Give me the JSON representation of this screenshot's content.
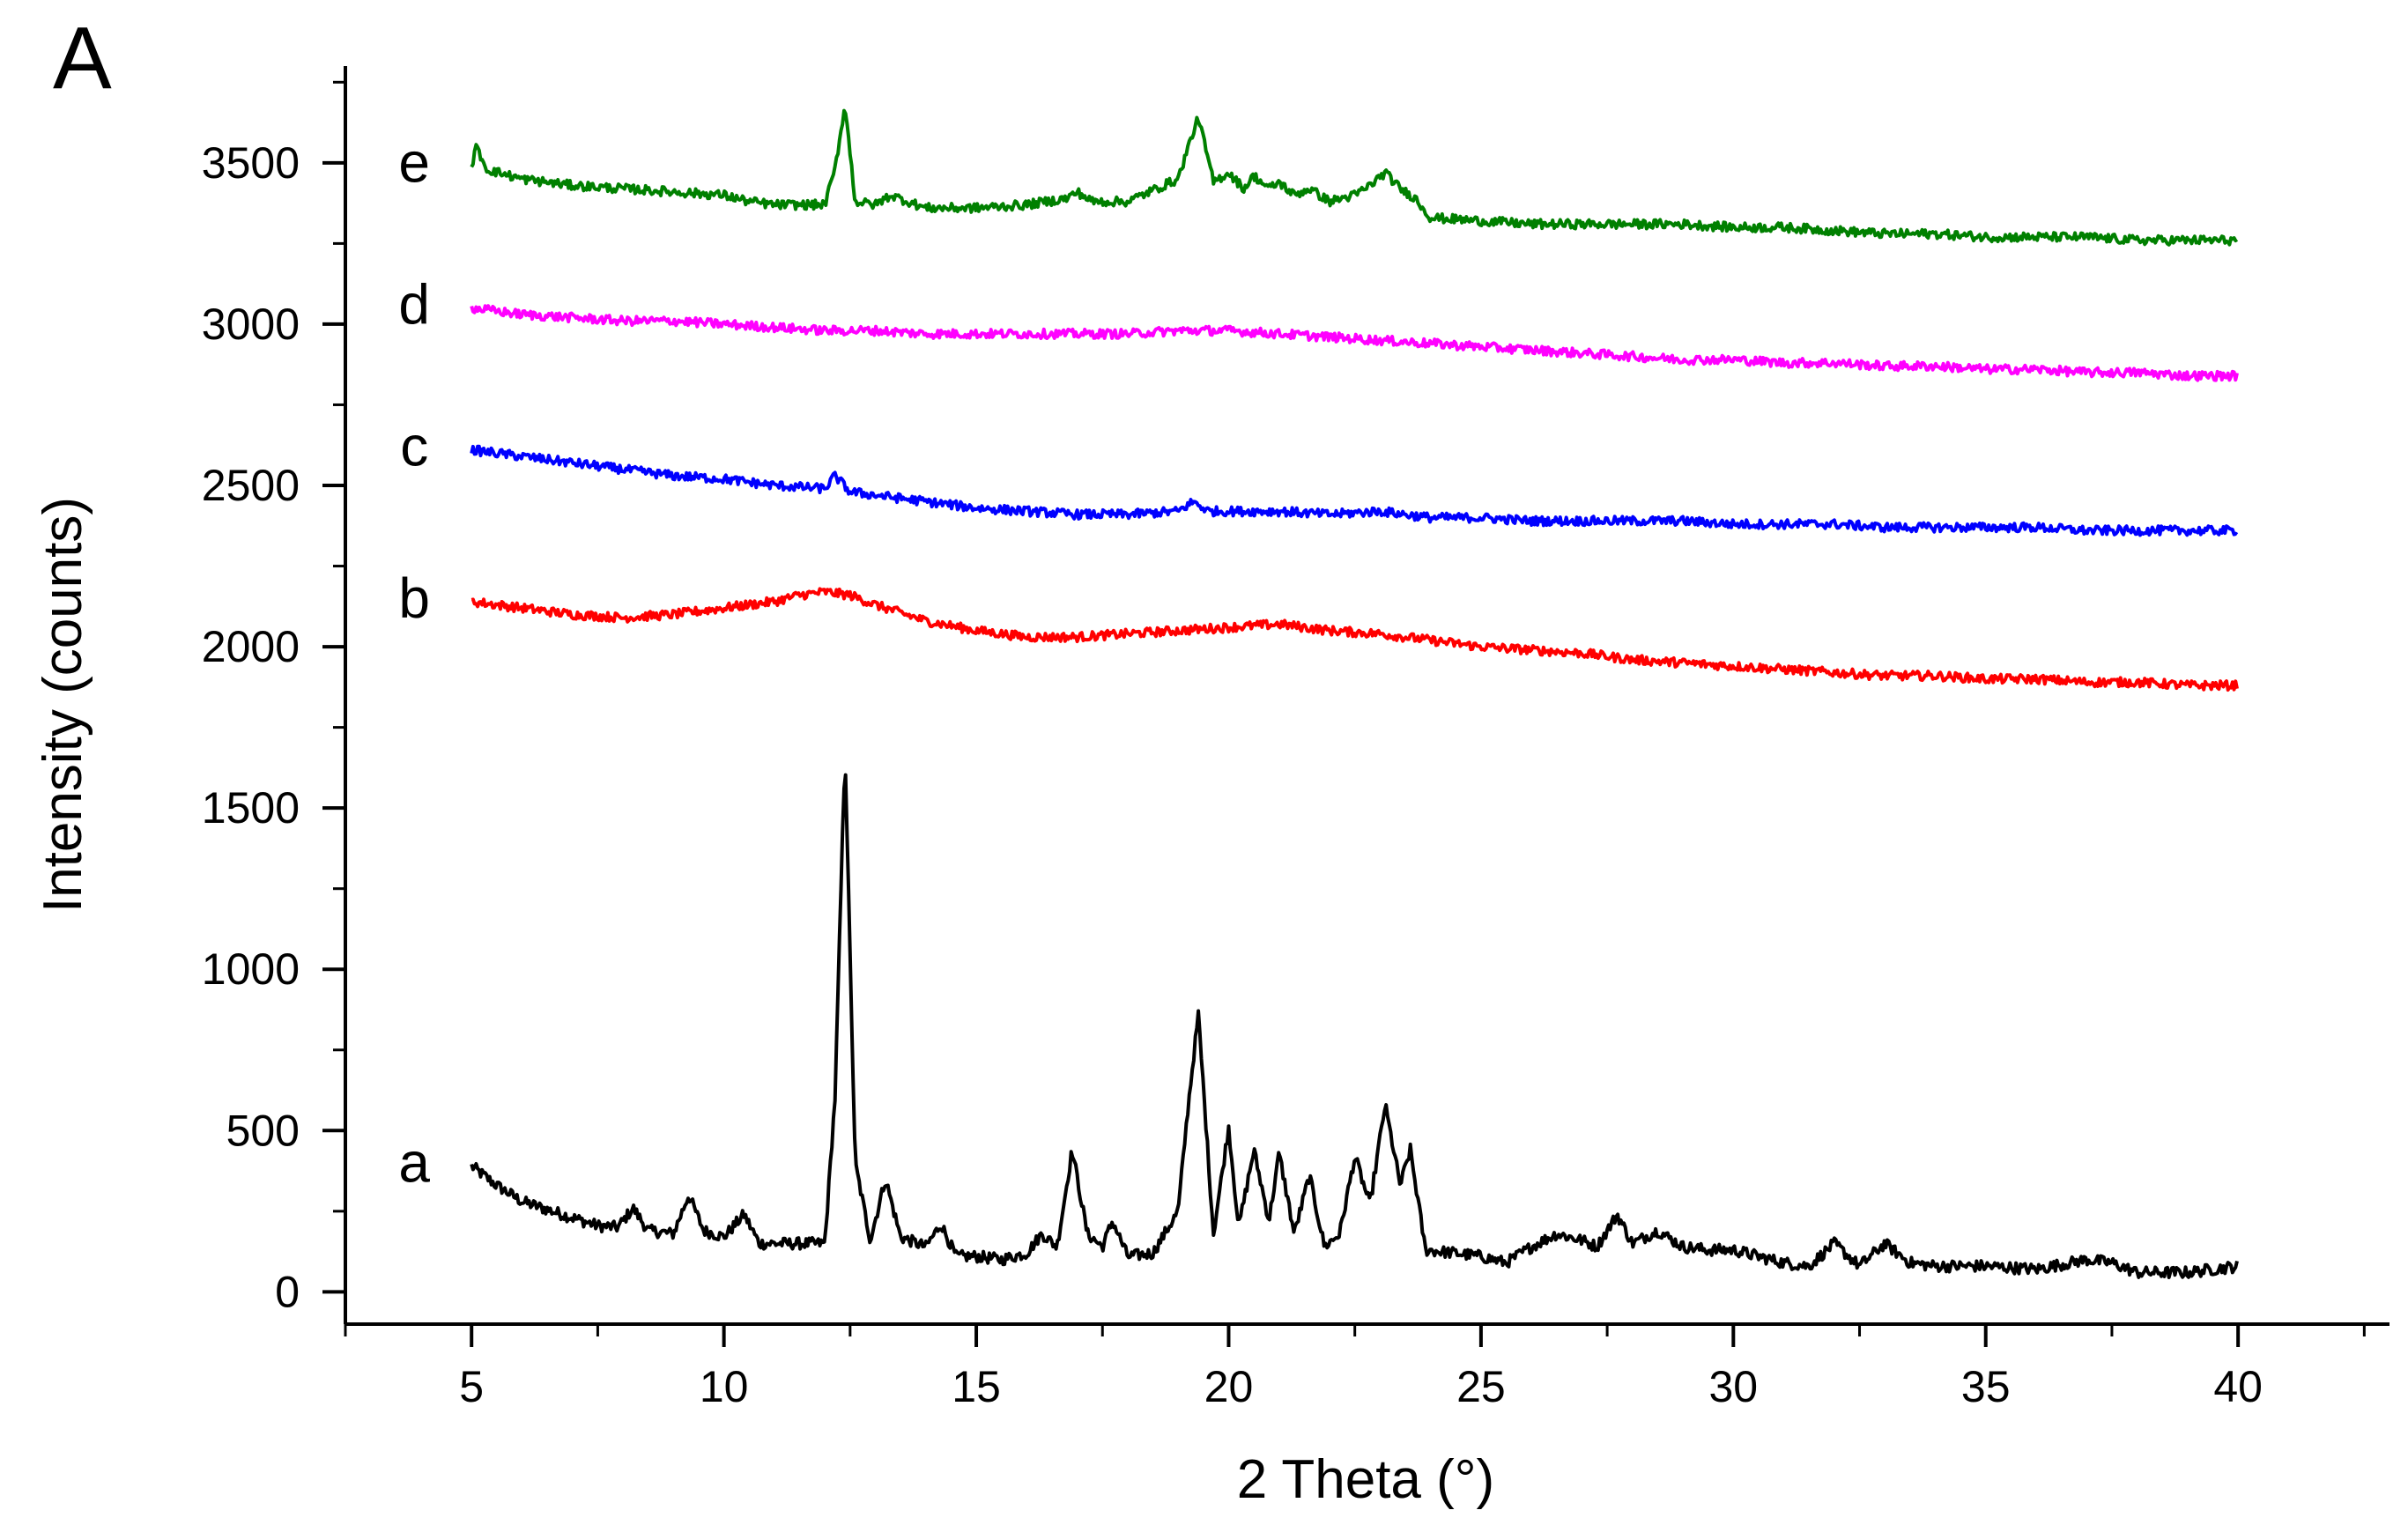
{
  "panel_label": "A",
  "chart_data": {
    "type": "line",
    "title": "",
    "xlabel": "2 Theta (°)",
    "ylabel": "Intensity (counts)",
    "xlim": [
      2.5,
      43
    ],
    "ylim": [
      -100,
      3800
    ],
    "xticks": [
      5,
      10,
      15,
      20,
      25,
      30,
      35,
      40
    ],
    "yticks": [
      0,
      500,
      1000,
      1500,
      2000,
      2500,
      3000,
      3500
    ],
    "grid": false,
    "legend": "none",
    "series": [
      {
        "label": "a",
        "color": "#000000",
        "x": [
          5,
          5.5,
          6,
          6.5,
          7,
          7.5,
          7.9,
          8.2,
          8.5,
          9,
          9.3,
          9.6,
          10,
          10.4,
          10.7,
          11,
          11.5,
          12,
          12.2,
          12.4,
          12.6,
          12.9,
          13.2,
          13.5,
          14,
          14.3,
          14.6,
          15,
          15.5,
          16,
          16.3,
          16.6,
          16.9,
          17.2,
          17.5,
          17.7,
          18,
          18.5,
          19,
          19.2,
          19.4,
          19.7,
          20,
          20.2,
          20.5,
          20.8,
          21,
          21.3,
          21.6,
          21.9,
          22.2,
          22.5,
          22.8,
          23.1,
          23.4,
          23.6,
          23.9,
          24.5,
          25,
          25.5,
          26,
          26.5,
          27,
          27.3,
          27.7,
          28,
          28.5,
          29,
          29.5,
          30,
          30.5,
          31,
          31.5,
          32,
          32.5,
          33,
          33.5,
          34,
          35,
          36,
          37,
          37.5,
          38,
          39,
          40
        ],
        "y": [
          390,
          330,
          280,
          255,
          230,
          205,
          200,
          260,
          190,
          180,
          300,
          190,
          170,
          240,
          150,
          150,
          150,
          150,
          600,
          1680,
          400,
          160,
          350,
          170,
          140,
          210,
          110,
          110,
          100,
          120,
          180,
          140,
          440,
          180,
          140,
          220,
          110,
          120,
          250,
          580,
          860,
          180,
          510,
          200,
          440,
          220,
          430,
          180,
          360,
          140,
          180,
          420,
          270,
          580,
          330,
          440,
          130,
          120,
          110,
          90,
          140,
          180,
          160,
          140,
          240,
          150,
          190,
          140,
          130,
          130,
          110,
          90,
          80,
          150,
          80,
          150,
          90,
          80,
          80,
          70,
          100,
          90,
          60,
          60,
          80
        ]
      },
      {
        "label": "b",
        "color": "#ff0000",
        "x": [
          5,
          6,
          7,
          8,
          9,
          10,
          11,
          11.5,
          12,
          12.5,
          13,
          14,
          15,
          16,
          17,
          18,
          19,
          20,
          21,
          22,
          23,
          24,
          25,
          26,
          27,
          28,
          29,
          30,
          31,
          32,
          33,
          34,
          35,
          36,
          37,
          38,
          39,
          40
        ],
        "y": [
          2140,
          2120,
          2100,
          2090,
          2100,
          2120,
          2140,
          2160,
          2170,
          2160,
          2130,
          2080,
          2050,
          2030,
          2030,
          2040,
          2050,
          2060,
          2070,
          2050,
          2040,
          2020,
          2000,
          1990,
          1980,
          1960,
          1950,
          1940,
          1930,
          1920,
          1910,
          1910,
          1900,
          1900,
          1890,
          1890,
          1880,
          1880
        ]
      },
      {
        "label": "c",
        "color": "#0000ff",
        "x": [
          5,
          6,
          7,
          8,
          9,
          10,
          11,
          12,
          12.2,
          12.5,
          13,
          14,
          15,
          16,
          17,
          18,
          19,
          19.3,
          19.6,
          20,
          21,
          22,
          23,
          24,
          25,
          26,
          27,
          28,
          29,
          30,
          31,
          32,
          33,
          34,
          35,
          36,
          37,
          38,
          39,
          40
        ],
        "y": [
          2610,
          2590,
          2570,
          2550,
          2530,
          2520,
          2500,
          2490,
          2530,
          2480,
          2470,
          2450,
          2430,
          2420,
          2410,
          2410,
          2420,
          2450,
          2420,
          2420,
          2420,
          2410,
          2420,
          2400,
          2400,
          2390,
          2390,
          2390,
          2390,
          2380,
          2380,
          2380,
          2370,
          2370,
          2370,
          2370,
          2360,
          2360,
          2360,
          2360
        ]
      },
      {
        "label": "d",
        "color": "#ff00ff",
        "x": [
          5,
          6,
          7,
          8,
          9,
          10,
          11,
          12,
          13,
          14,
          15,
          16,
          17,
          18,
          19,
          20,
          21,
          22,
          23,
          24,
          25,
          26,
          27,
          28,
          29,
          30,
          31,
          32,
          33,
          34,
          35,
          36,
          37,
          38,
          39,
          40
        ],
        "y": [
          3050,
          3030,
          3020,
          3010,
          3010,
          3000,
          2990,
          2980,
          2980,
          2970,
          2970,
          2970,
          2970,
          2970,
          2980,
          2980,
          2970,
          2960,
          2950,
          2940,
          2930,
          2920,
          2910,
          2900,
          2890,
          2890,
          2880,
          2880,
          2870,
          2870,
          2860,
          2860,
          2850,
          2850,
          2840,
          2840
        ]
      },
      {
        "label": "e",
        "color": "#008000",
        "x": [
          5,
          5.1,
          5.3,
          6,
          7,
          8,
          9,
          10,
          10.5,
          11,
          12,
          12.2,
          12.4,
          12.6,
          13,
          13.3,
          14,
          15,
          16,
          16.8,
          17,
          17.3,
          18,
          19,
          19.2,
          19.4,
          19.7,
          20,
          20.3,
          20.5,
          20.8,
          21,
          21.3,
          21.6,
          22,
          22.5,
          22.8,
          23.1,
          23.4,
          23.7,
          24,
          25,
          26,
          27,
          28,
          29,
          30,
          31,
          32,
          33,
          34,
          35,
          36,
          37,
          38,
          39,
          40
        ],
        "y": [
          3490,
          3550,
          3480,
          3450,
          3430,
          3420,
          3410,
          3400,
          3380,
          3370,
          3370,
          3480,
          3680,
          3380,
          3370,
          3400,
          3360,
          3360,
          3370,
          3390,
          3410,
          3380,
          3380,
          3450,
          3550,
          3640,
          3440,
          3470,
          3420,
          3460,
          3420,
          3440,
          3400,
          3420,
          3380,
          3400,
          3430,
          3470,
          3420,
          3390,
          3330,
          3320,
          3310,
          3310,
          3310,
          3310,
          3300,
          3300,
          3290,
          3280,
          3280,
          3270,
          3270,
          3270,
          3260,
          3260,
          3260
        ]
      }
    ]
  }
}
